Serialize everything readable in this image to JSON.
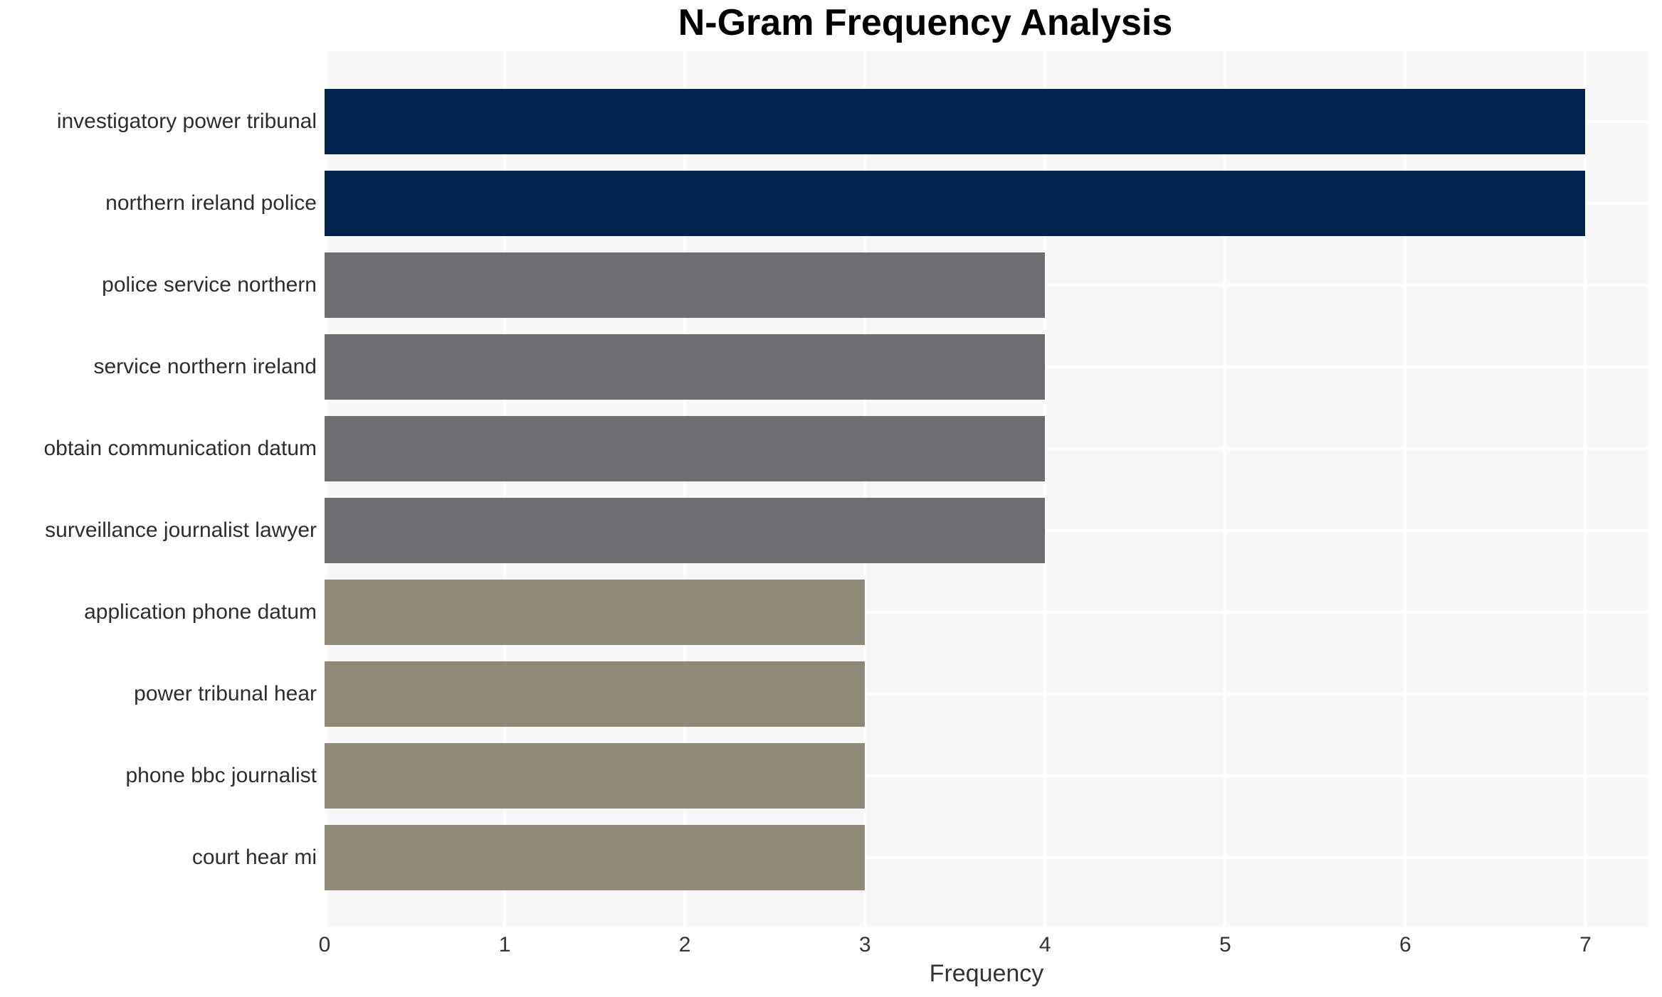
{
  "title": "N-Gram Frequency Analysis",
  "colors": {
    "navy": "#02244d",
    "gray": "#6d6e71",
    "olive": "#8f8978",
    "plot_background": "#f7f7f8",
    "gridline": "#ffffff",
    "label_text": "#2d2d2d",
    "tick_text": "#333333",
    "title_text": "#000000"
  },
  "chart_data": {
    "type": "bar",
    "orientation": "horizontal",
    "title": "N-Gram Frequency Analysis",
    "xlabel": "Frequency",
    "ylabel": "",
    "categories": [
      "investigatory power tribunal",
      "northern ireland police",
      "police service northern",
      "service northern ireland",
      "obtain communication datum",
      "surveillance journalist lawyer",
      "application phone datum",
      "power tribunal hear",
      "phone bbc journalist",
      "court hear mi"
    ],
    "values": [
      7,
      7,
      4,
      4,
      4,
      4,
      3,
      3,
      3,
      3
    ],
    "bar_colors": [
      "#02244d",
      "#02244d",
      "#6d6e71",
      "#6d6e71",
      "#6d6e71",
      "#6d6e71",
      "#8f8978",
      "#8f8978",
      "#8f8978",
      "#8f8978"
    ],
    "x_ticks": [
      0,
      1,
      2,
      3,
      4,
      5,
      6,
      7
    ],
    "xlim": [
      0,
      7.35
    ],
    "grid": true,
    "legend": false
  }
}
